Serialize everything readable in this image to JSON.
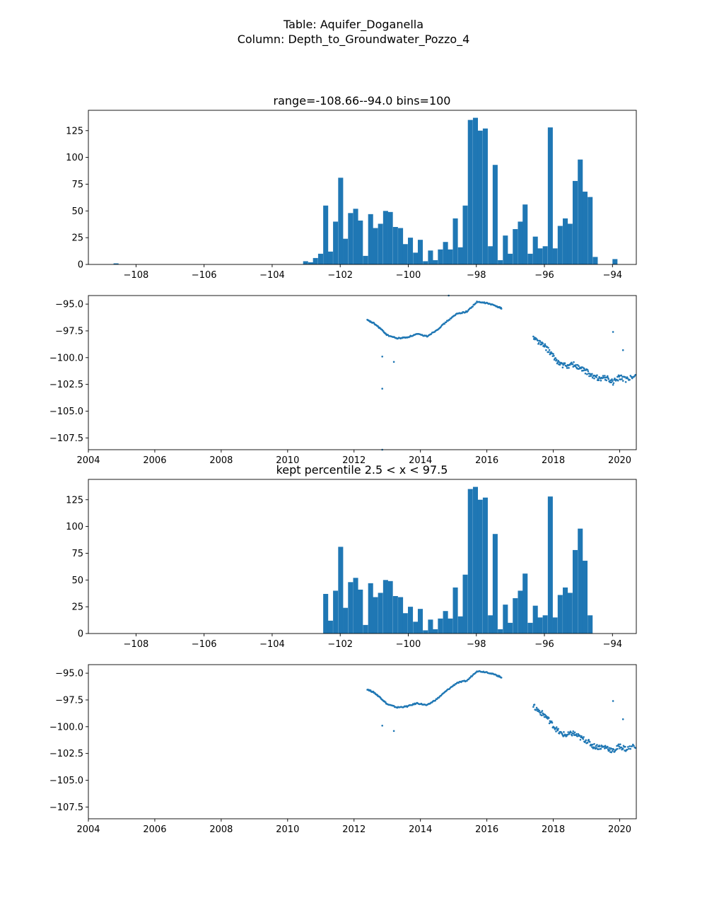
{
  "suptitle_lines": [
    "Table: Aquifer_Doganella",
    "Column: Depth_to_Groundwater_Pozzo_4"
  ],
  "colors": {
    "bar": "#1f77b4",
    "point": "#1f77b4",
    "axis": "#000000"
  },
  "chart_data": [
    {
      "type": "bar",
      "title": "range=-108.66--94.0 bins=100",
      "xlim": [
        -109.4,
        -93.3
      ],
      "ylim": [
        0,
        144
      ],
      "xticks": [
        -108,
        -106,
        -104,
        -102,
        -100,
        -98,
        -96,
        -94
      ],
      "yticks": [
        0,
        25,
        50,
        75,
        100,
        125
      ],
      "xlabel": "",
      "ylabel": "",
      "bin_width": 0.1466,
      "bins": [
        {
          "x": -108.66,
          "v": 1
        },
        {
          "x": -103.09,
          "v": 3
        },
        {
          "x": -102.94,
          "v": 2
        },
        {
          "x": -102.8,
          "v": 6
        },
        {
          "x": -102.65,
          "v": 10
        },
        {
          "x": -102.5,
          "v": 55
        },
        {
          "x": -102.36,
          "v": 12
        },
        {
          "x": -102.21,
          "v": 40
        },
        {
          "x": -102.06,
          "v": 81
        },
        {
          "x": -101.92,
          "v": 24
        },
        {
          "x": -101.77,
          "v": 48
        },
        {
          "x": -101.62,
          "v": 52
        },
        {
          "x": -101.48,
          "v": 41
        },
        {
          "x": -101.33,
          "v": 8
        },
        {
          "x": -101.18,
          "v": 47
        },
        {
          "x": -101.04,
          "v": 34
        },
        {
          "x": -100.89,
          "v": 38
        },
        {
          "x": -100.74,
          "v": 50
        },
        {
          "x": -100.6,
          "v": 49
        },
        {
          "x": -100.45,
          "v": 35
        },
        {
          "x": -100.3,
          "v": 34
        },
        {
          "x": -100.16,
          "v": 19
        },
        {
          "x": -100.01,
          "v": 25
        },
        {
          "x": -99.86,
          "v": 11
        },
        {
          "x": -99.72,
          "v": 23
        },
        {
          "x": -99.57,
          "v": 3
        },
        {
          "x": -99.42,
          "v": 13
        },
        {
          "x": -99.28,
          "v": 4
        },
        {
          "x": -99.13,
          "v": 14
        },
        {
          "x": -98.98,
          "v": 21
        },
        {
          "x": -98.84,
          "v": 14
        },
        {
          "x": -98.69,
          "v": 43
        },
        {
          "x": -98.54,
          "v": 16
        },
        {
          "x": -98.4,
          "v": 55
        },
        {
          "x": -98.25,
          "v": 135
        },
        {
          "x": -98.1,
          "v": 137
        },
        {
          "x": -97.96,
          "v": 125
        },
        {
          "x": -97.81,
          "v": 127
        },
        {
          "x": -97.66,
          "v": 17
        },
        {
          "x": -97.52,
          "v": 93
        },
        {
          "x": -97.37,
          "v": 4
        },
        {
          "x": -97.22,
          "v": 27
        },
        {
          "x": -97.08,
          "v": 10
        },
        {
          "x": -96.93,
          "v": 33
        },
        {
          "x": -96.78,
          "v": 40
        },
        {
          "x": -96.64,
          "v": 56
        },
        {
          "x": -96.49,
          "v": 10
        },
        {
          "x": -96.34,
          "v": 26
        },
        {
          "x": -96.2,
          "v": 15
        },
        {
          "x": -96.05,
          "v": 17
        },
        {
          "x": -95.9,
          "v": 128
        },
        {
          "x": -95.76,
          "v": 15
        },
        {
          "x": -95.61,
          "v": 36
        },
        {
          "x": -95.46,
          "v": 43
        },
        {
          "x": -95.32,
          "v": 38
        },
        {
          "x": -95.17,
          "v": 78
        },
        {
          "x": -95.02,
          "v": 98
        },
        {
          "x": -94.88,
          "v": 68
        },
        {
          "x": -94.73,
          "v": 63
        },
        {
          "x": -94.58,
          "v": 7
        },
        {
          "x": -94.0,
          "v": 5
        }
      ]
    },
    {
      "type": "scatter",
      "xlim": [
        2004,
        2020.5
      ],
      "ylim": [
        -108.6,
        -94.2
      ],
      "xticks": [
        2004,
        2006,
        2008,
        2010,
        2012,
        2014,
        2016,
        2018,
        2020
      ],
      "yticks": [
        -95.0,
        -97.5,
        -100.0,
        -102.5,
        -105.0,
        -107.5
      ],
      "ytick_labels": [
        "−95.0",
        "−97.5",
        "−100.0",
        "−102.5",
        "−105.0",
        "−107.5"
      ],
      "xlabel": "",
      "ylabel": "",
      "x_tick_labels": [
        "2004",
        "2006",
        "2008",
        "2010",
        "2012",
        "2014",
        "2016",
        "2018",
        "2020"
      ],
      "segments": [
        {
          "x": [
            2012.4,
            2012.6,
            2012.8,
            2013.0,
            2013.3,
            2013.6,
            2013.9,
            2014.2,
            2014.5,
            2014.8,
            2015.1,
            2015.4,
            2015.7,
            2016.0,
            2016.3,
            2016.45
          ],
          "y": [
            -96.5,
            -96.8,
            -97.3,
            -97.9,
            -98.2,
            -98.1,
            -97.8,
            -98.0,
            -97.4,
            -96.6,
            -95.9,
            -95.7,
            -94.8,
            -94.9,
            -95.2,
            -95.4
          ]
        },
        {
          "x": [
            2017.4,
            2017.6,
            2017.8,
            2018.0,
            2018.2,
            2018.4,
            2018.6,
            2018.8,
            2019.0,
            2019.2,
            2019.4,
            2019.6,
            2019.8,
            2020.0,
            2020.2,
            2020.5
          ],
          "y": [
            -98.1,
            -98.6,
            -99.1,
            -99.9,
            -100.6,
            -100.8,
            -100.6,
            -101.0,
            -101.3,
            -101.8,
            -101.9,
            -101.9,
            -102.3,
            -101.8,
            -102.1,
            -101.7
          ]
        }
      ],
      "scatter_noise": 0.25,
      "outliers": [
        {
          "x": 2012.85,
          "y": -99.9
        },
        {
          "x": 2013.2,
          "y": -100.4
        },
        {
          "x": 2012.85,
          "y": -102.9
        },
        {
          "x": 2012.85,
          "y": -108.6
        },
        {
          "x": 2014.85,
          "y": -94.2
        },
        {
          "x": 2019.8,
          "y": -97.6
        },
        {
          "x": 2020.1,
          "y": -99.3
        }
      ]
    },
    {
      "type": "bar",
      "title": "kept percentile 2.5 < x < 97.5",
      "xlim": [
        -109.4,
        -93.3
      ],
      "ylim": [
        0,
        144
      ],
      "xticks": [
        -108,
        -106,
        -104,
        -102,
        -100,
        -98,
        -96,
        -94
      ],
      "yticks": [
        0,
        25,
        50,
        75,
        100,
        125
      ],
      "xlabel": "",
      "ylabel": "",
      "bin_width": 0.1466,
      "bins": [
        {
          "x": -102.5,
          "v": 37
        },
        {
          "x": -102.36,
          "v": 12
        },
        {
          "x": -102.21,
          "v": 40
        },
        {
          "x": -102.06,
          "v": 81
        },
        {
          "x": -101.92,
          "v": 24
        },
        {
          "x": -101.77,
          "v": 48
        },
        {
          "x": -101.62,
          "v": 52
        },
        {
          "x": -101.48,
          "v": 41
        },
        {
          "x": -101.33,
          "v": 8
        },
        {
          "x": -101.18,
          "v": 47
        },
        {
          "x": -101.04,
          "v": 34
        },
        {
          "x": -100.89,
          "v": 38
        },
        {
          "x": -100.74,
          "v": 50
        },
        {
          "x": -100.6,
          "v": 49
        },
        {
          "x": -100.45,
          "v": 35
        },
        {
          "x": -100.3,
          "v": 34
        },
        {
          "x": -100.16,
          "v": 19
        },
        {
          "x": -100.01,
          "v": 25
        },
        {
          "x": -99.86,
          "v": 11
        },
        {
          "x": -99.72,
          "v": 23
        },
        {
          "x": -99.57,
          "v": 3
        },
        {
          "x": -99.42,
          "v": 13
        },
        {
          "x": -99.28,
          "v": 4
        },
        {
          "x": -99.13,
          "v": 14
        },
        {
          "x": -98.98,
          "v": 21
        },
        {
          "x": -98.84,
          "v": 14
        },
        {
          "x": -98.69,
          "v": 43
        },
        {
          "x": -98.54,
          "v": 16
        },
        {
          "x": -98.4,
          "v": 55
        },
        {
          "x": -98.25,
          "v": 135
        },
        {
          "x": -98.1,
          "v": 137
        },
        {
          "x": -97.96,
          "v": 125
        },
        {
          "x": -97.81,
          "v": 127
        },
        {
          "x": -97.66,
          "v": 17
        },
        {
          "x": -97.52,
          "v": 93
        },
        {
          "x": -97.37,
          "v": 4
        },
        {
          "x": -97.22,
          "v": 27
        },
        {
          "x": -97.08,
          "v": 10
        },
        {
          "x": -96.93,
          "v": 33
        },
        {
          "x": -96.78,
          "v": 40
        },
        {
          "x": -96.64,
          "v": 56
        },
        {
          "x": -96.49,
          "v": 10
        },
        {
          "x": -96.34,
          "v": 26
        },
        {
          "x": -96.2,
          "v": 15
        },
        {
          "x": -96.05,
          "v": 17
        },
        {
          "x": -95.9,
          "v": 128
        },
        {
          "x": -95.76,
          "v": 15
        },
        {
          "x": -95.61,
          "v": 36
        },
        {
          "x": -95.46,
          "v": 43
        },
        {
          "x": -95.32,
          "v": 38
        },
        {
          "x": -95.17,
          "v": 78
        },
        {
          "x": -95.02,
          "v": 98
        },
        {
          "x": -94.88,
          "v": 68
        },
        {
          "x": -94.73,
          "v": 17
        }
      ]
    },
    {
      "type": "scatter",
      "xlim": [
        2004,
        2020.5
      ],
      "ylim": [
        -108.6,
        -94.2
      ],
      "xticks": [
        2004,
        2006,
        2008,
        2010,
        2012,
        2014,
        2016,
        2018,
        2020
      ],
      "yticks": [
        -95.0,
        -97.5,
        -100.0,
        -102.5,
        -105.0,
        -107.5
      ],
      "ytick_labels": [
        "−95.0",
        "−97.5",
        "−100.0",
        "−102.5",
        "−105.0",
        "−107.5"
      ],
      "xlabel": "",
      "ylabel": "",
      "x_tick_labels": [
        "2004",
        "2006",
        "2008",
        "2010",
        "2012",
        "2014",
        "2016",
        "2018",
        "2020"
      ],
      "segments": [
        {
          "x": [
            2012.4,
            2012.6,
            2012.8,
            2013.0,
            2013.3,
            2013.6,
            2013.9,
            2014.2,
            2014.5,
            2014.8,
            2015.1,
            2015.4,
            2015.7,
            2016.0,
            2016.3,
            2016.45
          ],
          "y": [
            -96.5,
            -96.8,
            -97.3,
            -97.9,
            -98.2,
            -98.1,
            -97.8,
            -98.0,
            -97.4,
            -96.6,
            -95.9,
            -95.7,
            -94.8,
            -94.9,
            -95.2,
            -95.4
          ]
        },
        {
          "x": [
            2017.4,
            2017.6,
            2017.8,
            2018.0,
            2018.2,
            2018.4,
            2018.6,
            2018.8,
            2019.0,
            2019.2,
            2019.4,
            2019.6,
            2019.8,
            2020.0,
            2020.2,
            2020.5
          ],
          "y": [
            -98.1,
            -98.6,
            -99.1,
            -99.9,
            -100.6,
            -100.8,
            -100.6,
            -101.0,
            -101.3,
            -101.8,
            -101.9,
            -101.9,
            -102.3,
            -101.8,
            -102.1,
            -101.7
          ]
        }
      ],
      "scatter_noise": 0.25,
      "outliers": [
        {
          "x": 2012.85,
          "y": -99.9
        },
        {
          "x": 2013.2,
          "y": -100.4
        },
        {
          "x": 2019.8,
          "y": -97.6
        },
        {
          "x": 2020.1,
          "y": -99.3
        }
      ]
    }
  ]
}
